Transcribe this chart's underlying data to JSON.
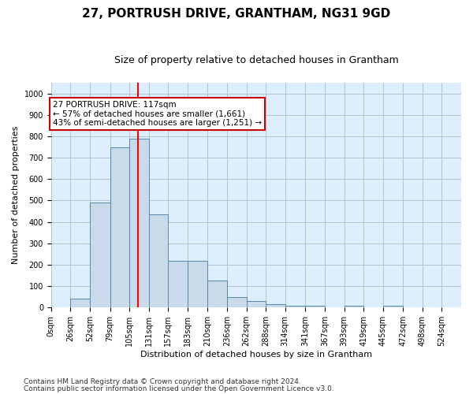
{
  "title": "27, PORTRUSH DRIVE, GRANTHAM, NG31 9GD",
  "subtitle": "Size of property relative to detached houses in Grantham",
  "xlabel": "Distribution of detached houses by size in Grantham",
  "ylabel": "Number of detached properties",
  "footnote1": "Contains HM Land Registry data © Crown copyright and database right 2024.",
  "footnote2": "Contains public sector information licensed under the Open Government Licence v3.0.",
  "bins": [
    0,
    26,
    52,
    79,
    105,
    131,
    157,
    183,
    210,
    236,
    262,
    288,
    314,
    341,
    367,
    393,
    419,
    445,
    472,
    498,
    524
  ],
  "bar_heights": [
    0,
    40,
    490,
    750,
    790,
    435,
    220,
    220,
    125,
    50,
    30,
    15,
    10,
    8,
    0,
    8,
    0,
    10,
    0,
    0,
    0
  ],
  "bar_color": "#c9daea",
  "bar_edge_color": "#5588aa",
  "bar_edge_width": 0.7,
  "red_line_x": 117,
  "annotation_line1": "27 PORTRUSH DRIVE: 117sqm",
  "annotation_line2": "← 57% of detached houses are smaller (1,661)",
  "annotation_line3": "43% of semi-detached houses are larger (1,251) →",
  "annotation_box_color": "#ffffff",
  "annotation_box_edge": "#cc0000",
  "ylim": [
    0,
    1050
  ],
  "yticks": [
    0,
    100,
    200,
    300,
    400,
    500,
    600,
    700,
    800,
    900,
    1000
  ],
  "grid_color": "#aabbcc",
  "background_color": "#ddeeff",
  "title_fontsize": 11,
  "subtitle_fontsize": 9,
  "xlabel_fontsize": 8,
  "ylabel_fontsize": 8,
  "tick_fontsize": 7,
  "footnote_fontsize": 6.5,
  "annotation_fontsize": 7.5
}
